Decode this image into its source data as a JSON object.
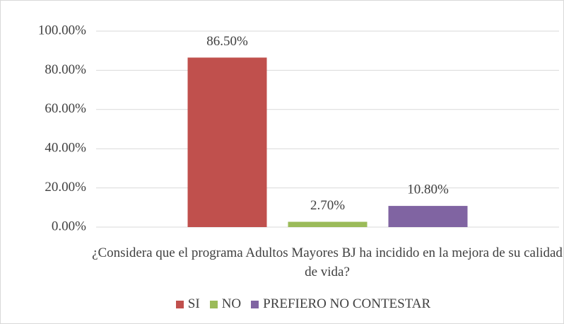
{
  "chart_data": {
    "type": "bar",
    "categories": [
      "¿Considera que el programa Adultos Mayores BJ ha incidido en la mejora de su calidad de vida?"
    ],
    "series": [
      {
        "name": "SI",
        "color": "#c0504d",
        "values": [
          86.5
        ],
        "value_labels": [
          "86.50%"
        ]
      },
      {
        "name": "NO",
        "color": "#9bbb59",
        "values": [
          2.7
        ],
        "value_labels": [
          "2.70%"
        ]
      },
      {
        "name": "PREFIERO NO CONTESTAR",
        "color": "#8064a2",
        "values": [
          10.8
        ],
        "value_labels": [
          "10.80%"
        ]
      }
    ],
    "ylim": [
      0,
      100
    ],
    "yticks": [
      {
        "value": 0,
        "label": "0.00%"
      },
      {
        "value": 20,
        "label": "20.00%"
      },
      {
        "value": 40,
        "label": "40.00%"
      },
      {
        "value": 60,
        "label": "60.00%"
      },
      {
        "value": 80,
        "label": "80.00%"
      },
      {
        "value": 100,
        "label": "100.00%"
      }
    ],
    "grid": true,
    "legend": "bottom"
  }
}
